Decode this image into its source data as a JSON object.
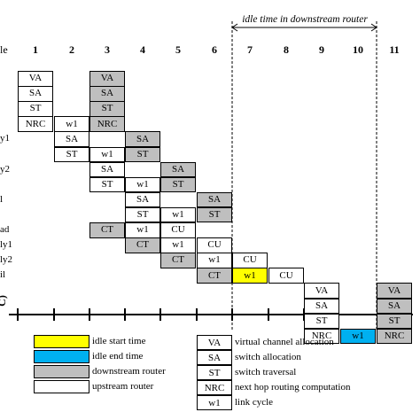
{
  "colors": {
    "grey": "#bfbfbf",
    "yellow": "#ffff00",
    "blue": "#00b0f0",
    "white": "#ffffff"
  },
  "banner": {
    "text": "idle time in downstream router"
  },
  "header_label": "le",
  "columns": [
    "1",
    "2",
    "3",
    "4",
    "5",
    "6",
    "7",
    "8",
    "9",
    "10",
    "11"
  ],
  "row_labels": [
    {
      "text": "y1",
      "row": 4
    },
    {
      "text": "y2",
      "row": 6
    },
    {
      "text": "l",
      "row": 8
    },
    {
      "text": "ad",
      "row": 10
    },
    {
      "text": "ly1",
      "row": 11
    },
    {
      "text": "ly2",
      "row": 12
    },
    {
      "text": "il",
      "row": 13
    }
  ],
  "axis_label": "C)",
  "cells": [
    {
      "row": 0,
      "col": 1,
      "text": "VA",
      "fill": "white"
    },
    {
      "row": 0,
      "col": 3,
      "text": "VA",
      "fill": "grey"
    },
    {
      "row": 1,
      "col": 1,
      "text": "SA",
      "fill": "white"
    },
    {
      "row": 1,
      "col": 3,
      "text": "SA",
      "fill": "grey"
    },
    {
      "row": 2,
      "col": 1,
      "text": "ST",
      "fill": "white"
    },
    {
      "row": 2,
      "col": 3,
      "text": "ST",
      "fill": "grey"
    },
    {
      "row": 3,
      "col": 1,
      "text": "NRC",
      "fill": "white"
    },
    {
      "row": 3,
      "col": 2,
      "text": "w1",
      "fill": "white"
    },
    {
      "row": 3,
      "col": 3,
      "text": "NRC",
      "fill": "grey"
    },
    {
      "row": 4,
      "col": 2,
      "text": "SA",
      "fill": "white"
    },
    {
      "row": 4,
      "col": 4,
      "text": "SA",
      "fill": "grey"
    },
    {
      "row": 5,
      "col": 2,
      "text": "ST",
      "fill": "white"
    },
    {
      "row": 5,
      "col": 3,
      "text": "w1",
      "fill": "white"
    },
    {
      "row": 5,
      "col": 4,
      "text": "ST",
      "fill": "grey"
    },
    {
      "row": 6,
      "col": 3,
      "text": "SA",
      "fill": "white"
    },
    {
      "row": 6,
      "col": 5,
      "text": "SA",
      "fill": "grey"
    },
    {
      "row": 7,
      "col": 3,
      "text": "ST",
      "fill": "white"
    },
    {
      "row": 7,
      "col": 4,
      "text": "w1",
      "fill": "white"
    },
    {
      "row": 7,
      "col": 5,
      "text": "ST",
      "fill": "grey"
    },
    {
      "row": 8,
      "col": 4,
      "text": "SA",
      "fill": "white"
    },
    {
      "row": 8,
      "col": 6,
      "text": "SA",
      "fill": "grey"
    },
    {
      "row": 9,
      "col": 4,
      "text": "ST",
      "fill": "white"
    },
    {
      "row": 9,
      "col": 5,
      "text": "w1",
      "fill": "white"
    },
    {
      "row": 9,
      "col": 6,
      "text": "ST",
      "fill": "grey"
    },
    {
      "row": 10,
      "col": 3,
      "text": "CT",
      "fill": "grey"
    },
    {
      "row": 10,
      "col": 4,
      "text": "w1",
      "fill": "white"
    },
    {
      "row": 10,
      "col": 5,
      "text": "CU",
      "fill": "white"
    },
    {
      "row": 11,
      "col": 4,
      "text": "CT",
      "fill": "grey"
    },
    {
      "row": 11,
      "col": 5,
      "text": "w1",
      "fill": "white"
    },
    {
      "row": 11,
      "col": 6,
      "text": "CU",
      "fill": "white"
    },
    {
      "row": 12,
      "col": 5,
      "text": "CT",
      "fill": "grey"
    },
    {
      "row": 12,
      "col": 6,
      "text": "w1",
      "fill": "white"
    },
    {
      "row": 12,
      "col": 7,
      "text": "CU",
      "fill": "white"
    },
    {
      "row": 13,
      "col": 6,
      "text": "CT",
      "fill": "grey"
    },
    {
      "row": 13,
      "col": 7,
      "text": "w1",
      "fill": "yellow"
    },
    {
      "row": 13,
      "col": 8,
      "text": "CU",
      "fill": "white"
    },
    {
      "row": 14,
      "col": 9,
      "text": "VA",
      "fill": "white"
    },
    {
      "row": 14,
      "col": 11,
      "text": "VA",
      "fill": "grey"
    },
    {
      "row": 15,
      "col": 9,
      "text": "SA",
      "fill": "white"
    },
    {
      "row": 15,
      "col": 11,
      "text": "SA",
      "fill": "grey"
    },
    {
      "row": 16,
      "col": 9,
      "text": "ST",
      "fill": "white"
    },
    {
      "row": 16,
      "col": 11,
      "text": "ST",
      "fill": "grey"
    },
    {
      "row": 17,
      "col": 9,
      "text": "NRC",
      "fill": "white"
    },
    {
      "row": 17,
      "col": 10,
      "text": "w1",
      "fill": "blue"
    },
    {
      "row": 17,
      "col": 11,
      "text": "NRC",
      "fill": "grey"
    }
  ],
  "legend_colors": [
    {
      "fill": "yellow",
      "label": "idle start time"
    },
    {
      "fill": "blue",
      "label": "idle end time"
    },
    {
      "fill": "grey",
      "label": "downstream router"
    },
    {
      "fill": "white",
      "label": "upstream router"
    }
  ],
  "legend_abbr": [
    {
      "abbr": "VA",
      "label": "virtual channel allocation"
    },
    {
      "abbr": "SA",
      "label": "switch allocation"
    },
    {
      "abbr": "ST",
      "label": "switch traversal"
    },
    {
      "abbr": "NRC",
      "label": "next hop routing computation"
    },
    {
      "abbr": "w1",
      "label": "link cycle"
    }
  ]
}
